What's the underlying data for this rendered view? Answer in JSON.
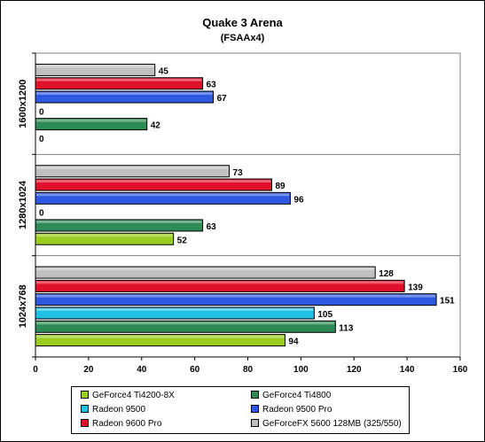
{
  "chart_data": {
    "type": "bar",
    "orientation": "horizontal",
    "title": "Quake 3 Arena",
    "subtitle": "(FSAAx4)",
    "categories": [
      "1600x1200",
      "1280x1024",
      "1024x768"
    ],
    "xlim": [
      0,
      160
    ],
    "xticks": [
      0,
      20,
      40,
      60,
      80,
      100,
      120,
      140,
      160
    ],
    "grid": false,
    "legend_position": "bottom",
    "series": [
      {
        "name": "GeForce4 Ti4200-8X",
        "color": "#9acd1f",
        "values": [
          0,
          52,
          94
        ]
      },
      {
        "name": "GeForce4 Ti4800",
        "color": "#2e8b57",
        "values": [
          42,
          63,
          113
        ]
      },
      {
        "name": "Radeon 9500",
        "color": "#1ec0e6",
        "values": [
          0,
          0,
          105
        ]
      },
      {
        "name": "Radeon 9500 Pro",
        "color": "#2f58e0",
        "values": [
          67,
          96,
          151
        ]
      },
      {
        "name": "Radeon 9600 Pro",
        "color": "#e0102a",
        "values": [
          63,
          89,
          139
        ]
      },
      {
        "name": "GeForceFX 5600 128MB (325/550)",
        "color": "#c0c0c0",
        "values": [
          45,
          73,
          128
        ]
      }
    ],
    "bar_labels": {
      "1600x1200": [
        "45",
        "63",
        "67",
        "0",
        "42",
        "0"
      ],
      "1280x1024": [
        "73",
        "89",
        "96",
        "0",
        "63",
        "52"
      ],
      "1024x768": [
        "128",
        "139",
        "151",
        "105",
        "113",
        "94"
      ]
    }
  }
}
